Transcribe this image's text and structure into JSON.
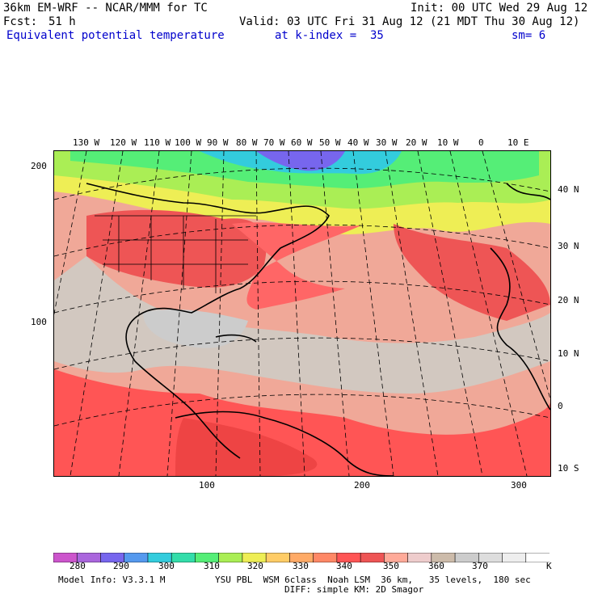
{
  "header": {
    "title_left": "36km EM-WRF -- NCAR/MMM for TC",
    "init": "Init: 00 UTC Wed 29 Aug 12",
    "fcst_label": "Fcst:",
    "fcst_value": "51 h",
    "valid": "Valid: 03 UTC Fri 31 Aug 12 (21 MDT Thu 30 Aug 12)",
    "field_name": "Equivalent potential temperature",
    "level": "at k-index =  35",
    "smoothing": "sm= 6"
  },
  "map": {
    "lon_labels": [
      "130 W",
      "120 W",
      "110 W",
      "100 W",
      "90 W",
      "80 W",
      "70 W",
      "60 W",
      "50 W",
      "40 W",
      "30 W",
      "20 W",
      "10 W",
      "0",
      "10 E"
    ],
    "lat_labels": [
      "40 N",
      "30 N",
      "20 N",
      "10 N",
      "0",
      "10 S"
    ],
    "y_grid_labels": [
      "200",
      "100"
    ],
    "x_grid_labels": [
      "100",
      "200",
      "300"
    ]
  },
  "colorbar": {
    "colors": [
      "#cc55cc",
      "#aa66dd",
      "#7766ee",
      "#5599ee",
      "#33ccdd",
      "#33ddaa",
      "#55ee77",
      "#aaee55",
      "#eeee55",
      "#ffcc66",
      "#ffaa66",
      "#ff8866",
      "#ff5555",
      "#ee5555",
      "#ffaa99",
      "#eecccc",
      "#ccbbaa",
      "#cccccc",
      "#dddddd",
      "#eeeeee",
      "#ffffff"
    ],
    "tick_labels": [
      "280",
      "290",
      "300",
      "310",
      "320",
      "330",
      "340",
      "350",
      "360",
      "370"
    ],
    "unit": "K"
  },
  "footer": {
    "model_info": "Model Info: V3.3.1 M",
    "physics": "YSU PBL  WSM 6class  Noah LSM  36 km,   35 levels,  180 sec",
    "diffusion": "DIFF: simple KM: 2D Smagor"
  }
}
